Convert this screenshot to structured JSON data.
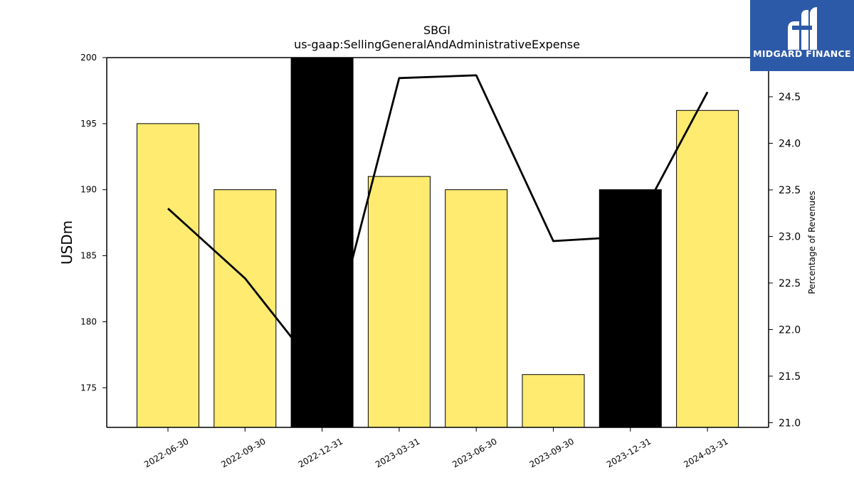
{
  "chart_data": {
    "type": "bar",
    "title": "SBGI",
    "subtitle": "us-gaap:SellingGeneralAndAdministrativeExpense",
    "ylabel": "USDm",
    "y2label": "Percentage of Revenues",
    "categories": [
      "2022-06-30",
      "2022-09-30",
      "2022-12-31",
      "2023-03-31",
      "2023-06-30",
      "2023-09-30",
      "2023-12-31",
      "2024-03-31"
    ],
    "series": [
      {
        "kind": "bar",
        "axis": "left",
        "values": [
          195,
          190,
          200,
          191,
          190,
          176,
          190,
          196
        ],
        "colors": [
          "#ffeb70",
          "#ffeb70",
          "#000000",
          "#ffeb70",
          "#ffeb70",
          "#ffeb70",
          "#000000",
          "#ffeb70"
        ]
      },
      {
        "kind": "line",
        "axis": "right",
        "values": [
          23.3,
          22.55,
          21.5,
          24.7,
          24.73,
          22.95,
          23.0,
          24.55
        ],
        "color": "#000000"
      }
    ],
    "ylim": [
      172,
      200
    ],
    "yticks": [
      175,
      180,
      185,
      190,
      195,
      200
    ],
    "y2lim": [
      20.95,
      24.92
    ],
    "y2ticks": [
      "21.0",
      "21.5",
      "22.0",
      "22.5",
      "23.0",
      "23.5",
      "24.0",
      "24.5"
    ],
    "grid": false,
    "legend": "none"
  },
  "logo": {
    "text": "MIDGARD FINANCE",
    "bg_color": "#2d5aa8",
    "icon": "midgard-logo-icon"
  }
}
